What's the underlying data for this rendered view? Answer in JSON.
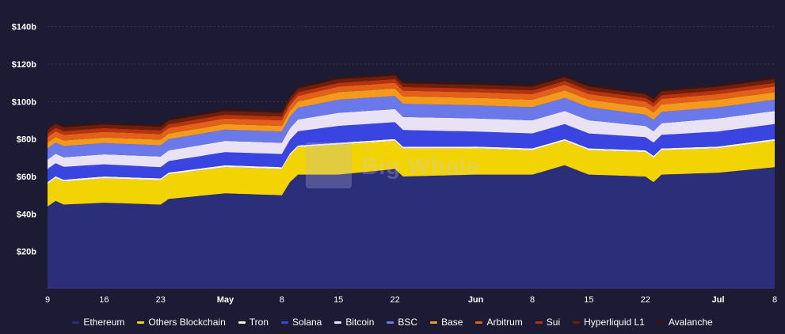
{
  "watermark": {
    "prefix": "The",
    "text": "Big Whale"
  },
  "chart_data": {
    "type": "area",
    "stacked": true,
    "title": "",
    "xlabel": "",
    "ylabel": "",
    "ylim": [
      0,
      150
    ],
    "y_ticks": [
      {
        "value": 20,
        "label": "$20b"
      },
      {
        "value": 40,
        "label": "$40b"
      },
      {
        "value": 60,
        "label": "$60b"
      },
      {
        "value": 80,
        "label": "$80b"
      },
      {
        "value": 100,
        "label": "$100b"
      },
      {
        "value": 120,
        "label": "$120b"
      },
      {
        "value": 140,
        "label": "$140b"
      }
    ],
    "x_ticks": [
      {
        "index": 0,
        "label": "9",
        "month": false
      },
      {
        "index": 7,
        "label": "16",
        "month": false
      },
      {
        "index": 14,
        "label": "23",
        "month": false
      },
      {
        "index": 22,
        "label": "May",
        "month": true
      },
      {
        "index": 29,
        "label": "8",
        "month": false
      },
      {
        "index": 36,
        "label": "15",
        "month": false
      },
      {
        "index": 43,
        "label": "22",
        "month": false
      },
      {
        "index": 53,
        "label": "Jun",
        "month": true
      },
      {
        "index": 60,
        "label": "8",
        "month": false
      },
      {
        "index": 67,
        "label": "15",
        "month": false
      },
      {
        "index": 74,
        "label": "22",
        "month": false
      },
      {
        "index": 83,
        "label": "Jul",
        "month": true
      },
      {
        "index": 90,
        "label": "8",
        "month": false
      }
    ],
    "x_count": 91,
    "grid": true,
    "legend_position": "bottom",
    "series": [
      {
        "name": "Ethereum",
        "color": "#2b2e78",
        "values": [
          {
            "i": 0,
            "v": 44
          },
          {
            "i": 1,
            "v": 47
          },
          {
            "i": 2,
            "v": 45
          },
          {
            "i": 7,
            "v": 46
          },
          {
            "i": 14,
            "v": 45
          },
          {
            "i": 15,
            "v": 48
          },
          {
            "i": 22,
            "v": 51
          },
          {
            "i": 29,
            "v": 50
          },
          {
            "i": 30,
            "v": 57
          },
          {
            "i": 31,
            "v": 61
          },
          {
            "i": 36,
            "v": 61
          },
          {
            "i": 43,
            "v": 64
          },
          {
            "i": 44,
            "v": 60
          },
          {
            "i": 53,
            "v": 61
          },
          {
            "i": 60,
            "v": 61
          },
          {
            "i": 64,
            "v": 66
          },
          {
            "i": 67,
            "v": 61
          },
          {
            "i": 74,
            "v": 60
          },
          {
            "i": 75,
            "v": 57
          },
          {
            "i": 76,
            "v": 61
          },
          {
            "i": 83,
            "v": 62
          },
          {
            "i": 90,
            "v": 65
          }
        ]
      },
      {
        "name": "Others Blockchain",
        "color": "#f2d404",
        "values": [
          {
            "i": 0,
            "v": 12
          },
          {
            "i": 7,
            "v": 13
          },
          {
            "i": 14,
            "v": 13
          },
          {
            "i": 22,
            "v": 14
          },
          {
            "i": 29,
            "v": 14
          },
          {
            "i": 36,
            "v": 16
          },
          {
            "i": 43,
            "v": 15
          },
          {
            "i": 53,
            "v": 14
          },
          {
            "i": 60,
            "v": 13
          },
          {
            "i": 67,
            "v": 13
          },
          {
            "i": 74,
            "v": 13
          },
          {
            "i": 83,
            "v": 13
          },
          {
            "i": 90,
            "v": 14
          }
        ]
      },
      {
        "name": "Tron",
        "color": "#f7f3e4",
        "values": [
          {
            "i": 0,
            "v": 1
          },
          {
            "i": 90,
            "v": 1
          }
        ]
      },
      {
        "name": "Solana",
        "color": "#3a44e0",
        "values": [
          {
            "i": 0,
            "v": 7
          },
          {
            "i": 14,
            "v": 6
          },
          {
            "i": 22,
            "v": 7
          },
          {
            "i": 29,
            "v": 7
          },
          {
            "i": 36,
            "v": 9
          },
          {
            "i": 43,
            "v": 9
          },
          {
            "i": 53,
            "v": 8
          },
          {
            "i": 60,
            "v": 8
          },
          {
            "i": 67,
            "v": 8
          },
          {
            "i": 74,
            "v": 7
          },
          {
            "i": 83,
            "v": 8
          },
          {
            "i": 90,
            "v": 8
          }
        ]
      },
      {
        "name": "Bitcoin",
        "color": "#e9e2f4",
        "values": [
          {
            "i": 0,
            "v": 5
          },
          {
            "i": 22,
            "v": 6
          },
          {
            "i": 29,
            "v": 6
          },
          {
            "i": 36,
            "v": 7
          },
          {
            "i": 43,
            "v": 7
          },
          {
            "i": 53,
            "v": 7
          },
          {
            "i": 60,
            "v": 7
          },
          {
            "i": 67,
            "v": 7
          },
          {
            "i": 74,
            "v": 6
          },
          {
            "i": 83,
            "v": 7
          },
          {
            "i": 90,
            "v": 7
          }
        ]
      },
      {
        "name": "BSC",
        "color": "#6a78ea",
        "values": [
          {
            "i": 0,
            "v": 6
          },
          {
            "i": 22,
            "v": 6
          },
          {
            "i": 29,
            "v": 6
          },
          {
            "i": 36,
            "v": 7
          },
          {
            "i": 43,
            "v": 7
          },
          {
            "i": 53,
            "v": 7
          },
          {
            "i": 60,
            "v": 7
          },
          {
            "i": 67,
            "v": 7
          },
          {
            "i": 74,
            "v": 6
          },
          {
            "i": 83,
            "v": 6
          },
          {
            "i": 90,
            "v": 6
          }
        ]
      },
      {
        "name": "Base",
        "color": "#f39a1e",
        "values": [
          {
            "i": 0,
            "v": 3
          },
          {
            "i": 22,
            "v": 3
          },
          {
            "i": 29,
            "v": 3
          },
          {
            "i": 36,
            "v": 4
          },
          {
            "i": 43,
            "v": 4
          },
          {
            "i": 53,
            "v": 4
          },
          {
            "i": 60,
            "v": 4
          },
          {
            "i": 67,
            "v": 4
          },
          {
            "i": 74,
            "v": 4
          },
          {
            "i": 83,
            "v": 4
          },
          {
            "i": 90,
            "v": 4
          }
        ]
      },
      {
        "name": "Arbitrum",
        "color": "#e3601a",
        "values": [
          {
            "i": 0,
            "v": 3
          },
          {
            "i": 22,
            "v": 3
          },
          {
            "i": 29,
            "v": 3
          },
          {
            "i": 36,
            "v": 3
          },
          {
            "i": 43,
            "v": 3
          },
          {
            "i": 53,
            "v": 3
          },
          {
            "i": 60,
            "v": 3
          },
          {
            "i": 67,
            "v": 3
          },
          {
            "i": 74,
            "v": 3
          },
          {
            "i": 83,
            "v": 3
          },
          {
            "i": 90,
            "v": 3
          }
        ]
      },
      {
        "name": "Sui",
        "color": "#b8320e",
        "values": [
          {
            "i": 0,
            "v": 2
          },
          {
            "i": 22,
            "v": 2
          },
          {
            "i": 29,
            "v": 2
          },
          {
            "i": 36,
            "v": 2
          },
          {
            "i": 43,
            "v": 2
          },
          {
            "i": 53,
            "v": 2
          },
          {
            "i": 60,
            "v": 2
          },
          {
            "i": 67,
            "v": 2
          },
          {
            "i": 74,
            "v": 2
          },
          {
            "i": 83,
            "v": 2
          },
          {
            "i": 90,
            "v": 2
          }
        ]
      },
      {
        "name": "Hyperliquid L1",
        "color": "#6e1f0c",
        "values": [
          {
            "i": 0,
            "v": 2
          },
          {
            "i": 22,
            "v": 2
          },
          {
            "i": 29,
            "v": 2
          },
          {
            "i": 36,
            "v": 2
          },
          {
            "i": 43,
            "v": 2
          },
          {
            "i": 53,
            "v": 2
          },
          {
            "i": 60,
            "v": 2
          },
          {
            "i": 67,
            "v": 2
          },
          {
            "i": 74,
            "v": 2
          },
          {
            "i": 83,
            "v": 2
          },
          {
            "i": 90,
            "v": 2
          }
        ]
      },
      {
        "name": "Avalanche",
        "color": "#3a1410",
        "values": [
          {
            "i": 0,
            "v": 1
          },
          {
            "i": 22,
            "v": 1
          },
          {
            "i": 29,
            "v": 1
          },
          {
            "i": 36,
            "v": 1
          },
          {
            "i": 43,
            "v": 1
          },
          {
            "i": 53,
            "v": 1
          },
          {
            "i": 60,
            "v": 1
          },
          {
            "i": 67,
            "v": 1
          },
          {
            "i": 74,
            "v": 1
          },
          {
            "i": 83,
            "v": 1
          },
          {
            "i": 90,
            "v": 1
          }
        ]
      }
    ]
  }
}
